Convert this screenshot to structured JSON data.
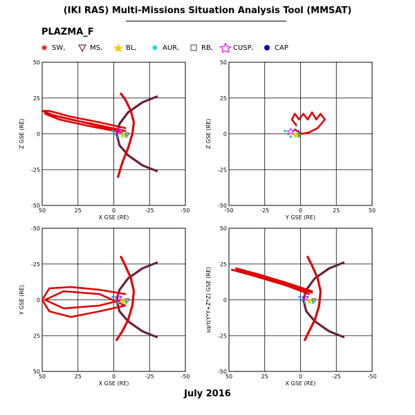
{
  "header": {
    "title": "(IKI RAS) Multi-Missions Situation Analysis Tool (MMSAT)",
    "subtitle": "PLAZMA_F",
    "footer": "July 2016"
  },
  "legend": [
    {
      "label": "SW,",
      "color": "#e00000",
      "marker": "asterisk"
    },
    {
      "label": "MS,",
      "color": "#7a1a3a",
      "marker": "triangle-down"
    },
    {
      "label": "BL,",
      "color": "#f0d000",
      "marker": "star"
    },
    {
      "label": "AUR,",
      "color": "#00c8d8",
      "marker": "asterisk"
    },
    {
      "label": "RB,",
      "color": "#606060",
      "marker": "square"
    },
    {
      "label": "CUSP,",
      "color": "#ff00ff",
      "marker": "star-open"
    },
    {
      "label": "CAP",
      "color": "#0000cc",
      "marker": "circle-filled"
    }
  ],
  "chart_data": [
    {
      "type": "line",
      "panel": "top-left",
      "xlabel": "X GSE (RE)",
      "ylabel": "Z GSE (RE)",
      "xlim": [
        50,
        -50
      ],
      "ylim": [
        -50,
        50
      ],
      "xticks": [
        "50",
        "25",
        "0",
        "-25",
        "-50"
      ],
      "yticks": [
        "50",
        "25",
        "0",
        "-25",
        "-50"
      ],
      "grid": true,
      "series": [
        {
          "role": "magnetopause",
          "color": "#6b2040",
          "points": [
            [
              -30,
              26
            ],
            [
              -20,
              22
            ],
            [
              -10,
              15
            ],
            [
              -4,
              7
            ],
            [
              -2,
              0
            ],
            [
              -4,
              -8
            ],
            [
              -10,
              -15
            ],
            [
              -20,
              -22
            ],
            [
              -30,
              -26
            ]
          ]
        },
        {
          "role": "bow-shock",
          "color": "#e00000",
          "points": [
            [
              -5,
              28
            ],
            [
              -8,
              24
            ],
            [
              -12,
              16
            ],
            [
              -14,
              8
            ],
            [
              -13,
              0
            ],
            [
              -10,
              -10
            ],
            [
              -6,
              -20
            ],
            [
              -3,
              -30
            ]
          ]
        },
        {
          "role": "orbit",
          "color": "#e00000",
          "points": [
            [
              -8,
              4
            ],
            [
              10,
              8
            ],
            [
              30,
              12
            ],
            [
              45,
              16
            ],
            [
              50,
              16
            ],
            [
              42,
              13
            ],
            [
              25,
              9
            ],
            [
              5,
              4
            ],
            [
              -8,
              2
            ],
            [
              10,
              6
            ],
            [
              30,
              10
            ],
            [
              48,
              14
            ],
            [
              38,
              10
            ],
            [
              15,
              5
            ],
            [
              -6,
              1
            ]
          ]
        }
      ]
    },
    {
      "type": "line",
      "panel": "top-right",
      "xlabel": "Y GSE (RE)",
      "ylabel": "Z GSE (RE)",
      "xlim": [
        -50,
        50
      ],
      "ylim": [
        -50,
        50
      ],
      "xticks": [
        "-50",
        "-25",
        "0",
        "25",
        "50"
      ],
      "yticks": [
        "50",
        "25",
        "0",
        "-25",
        "-50"
      ],
      "grid": true,
      "series": [
        {
          "role": "orbit",
          "color": "#e00000",
          "points": [
            [
              -3,
              6
            ],
            [
              -6,
              10
            ],
            [
              -4,
              14
            ],
            [
              -1,
              10
            ],
            [
              2,
              14
            ],
            [
              5,
              10
            ],
            [
              8,
              15
            ],
            [
              11,
              10
            ],
            [
              14,
              14
            ],
            [
              17,
              10
            ],
            [
              12,
              4
            ],
            [
              6,
              1
            ],
            [
              1,
              0
            ],
            [
              -4,
              3
            ]
          ]
        }
      ]
    },
    {
      "type": "line",
      "panel": "bottom-left",
      "xlabel": "X GSE (RE)",
      "ylabel": "Y GSE (RE)",
      "xlim": [
        50,
        -50
      ],
      "ylim": [
        50,
        -50
      ],
      "xticks": [
        "50",
        "25",
        "0",
        "-25",
        "-50"
      ],
      "yticks": [
        "-50",
        "-25",
        "0",
        "25",
        "50"
      ],
      "grid": true,
      "series": [
        {
          "role": "magnetopause",
          "color": "#6b2040",
          "points": [
            [
              -30,
              -26
            ],
            [
              -20,
              -22
            ],
            [
              -10,
              -15
            ],
            [
              -4,
              -7
            ],
            [
              -2,
              0
            ],
            [
              -4,
              8
            ],
            [
              -10,
              15
            ],
            [
              -20,
              22
            ],
            [
              -30,
              26
            ]
          ]
        },
        {
          "role": "bow-shock",
          "color": "#e00000",
          "points": [
            [
              -5,
              -30
            ],
            [
              -8,
              -24
            ],
            [
              -12,
              -15
            ],
            [
              -14,
              -6
            ],
            [
              -13,
              4
            ],
            [
              -10,
              14
            ],
            [
              -6,
              22
            ],
            [
              -2,
              28
            ]
          ]
        },
        {
          "role": "orbit",
          "color": "#e00000",
          "points": [
            [
              -8,
              -4
            ],
            [
              10,
              -7
            ],
            [
              30,
              -9
            ],
            [
              45,
              -8
            ],
            [
              50,
              0
            ],
            [
              45,
              8
            ],
            [
              30,
              12
            ],
            [
              10,
              8
            ],
            [
              -8,
              4
            ],
            [
              10,
              -4
            ],
            [
              35,
              -6
            ],
            [
              48,
              0
            ],
            [
              35,
              6
            ],
            [
              10,
              4
            ],
            [
              -6,
              0
            ]
          ]
        }
      ]
    },
    {
      "type": "line",
      "panel": "bottom-right",
      "xlabel": "X GSE (RE)",
      "ylabel": "sqrt(Y*Y+Z*Z) GSE (RE)",
      "xlim": [
        50,
        -50
      ],
      "ylim": [
        -50,
        50
      ],
      "xticks": [
        "50",
        "25",
        "0",
        "-25",
        "-50"
      ],
      "yticks": [
        "50",
        "25",
        "0",
        "-25",
        "-50"
      ],
      "grid": true,
      "series": [
        {
          "role": "magnetopause",
          "color": "#6b2040",
          "points": [
            [
              -30,
              26
            ],
            [
              -20,
              22
            ],
            [
              -10,
              15
            ],
            [
              -4,
              7
            ],
            [
              -2,
              0
            ],
            [
              -4,
              -8
            ],
            [
              -10,
              -15
            ],
            [
              -20,
              -22
            ],
            [
              -30,
              -26
            ]
          ]
        },
        {
          "role": "bow-shock",
          "color": "#e00000",
          "points": [
            [
              -5,
              30
            ],
            [
              -8,
              24
            ],
            [
              -12,
              15
            ],
            [
              -14,
              6
            ],
            [
              -13,
              -4
            ],
            [
              -10,
              -14
            ],
            [
              -6,
              -22
            ],
            [
              -3,
              -28
            ]
          ]
        },
        {
          "role": "orbit",
          "color": "#e00000",
          "points": [
            [
              -8,
              6
            ],
            [
              10,
              12
            ],
            [
              30,
              18
            ],
            [
              45,
              22
            ],
            [
              40,
              20
            ],
            [
              25,
              15
            ],
            [
              5,
              9
            ],
            [
              -8,
              5
            ],
            [
              15,
              13
            ],
            [
              35,
              19
            ],
            [
              48,
              21
            ],
            [
              30,
              16
            ],
            [
              10,
              10
            ],
            [
              -6,
              4
            ]
          ]
        }
      ]
    }
  ]
}
